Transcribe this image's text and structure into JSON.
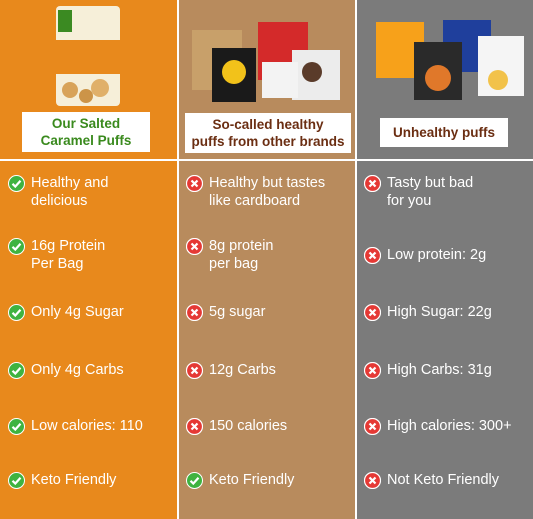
{
  "columns": [
    {
      "label": [
        "Our Salted",
        "Caramel Puffs"
      ],
      "items": [
        {
          "icon": "check",
          "lines": [
            "Healthy and",
            "delicious"
          ]
        },
        {
          "icon": "check",
          "lines": [
            "16g Protein",
            "Per Bag"
          ]
        },
        {
          "icon": "check",
          "lines": [
            "Only 4g Sugar"
          ]
        },
        {
          "icon": "check",
          "lines": [
            "Only 4g Carbs"
          ]
        },
        {
          "icon": "check",
          "lines": [
            "Low calories: 110"
          ]
        },
        {
          "icon": "check",
          "lines": [
            "Keto Friendly"
          ]
        }
      ]
    },
    {
      "label": [
        "So-called healthy",
        "puffs from other brands"
      ],
      "items": [
        {
          "icon": "cross",
          "lines": [
            "Healthy but tastes",
            "like cardboard"
          ]
        },
        {
          "icon": "cross",
          "lines": [
            "8g protein",
            "per bag"
          ]
        },
        {
          "icon": "cross",
          "lines": [
            "5g sugar"
          ]
        },
        {
          "icon": "cross",
          "lines": [
            "12g Carbs"
          ]
        },
        {
          "icon": "cross",
          "lines": [
            "150 calories"
          ]
        },
        {
          "icon": "check",
          "lines": [
            "Keto Friendly"
          ]
        }
      ]
    },
    {
      "label": [
        "Unhealthy puffs"
      ],
      "items": [
        {
          "icon": "cross",
          "lines": [
            "Tasty but bad",
            "for you"
          ]
        },
        {
          "icon": "cross",
          "lines": [
            "Low protein: 2g"
          ]
        },
        {
          "icon": "cross",
          "lines": [
            "High Sugar: 22g"
          ]
        },
        {
          "icon": "cross",
          "lines": [
            "High Carbs: 31g"
          ]
        },
        {
          "icon": "cross",
          "lines": [
            "High calories: 300+"
          ]
        },
        {
          "icon": "cross",
          "lines": [
            "Not Keto Friendly"
          ]
        }
      ]
    }
  ]
}
